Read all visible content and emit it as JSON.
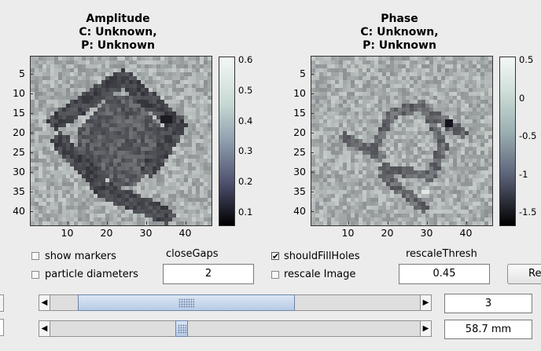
{
  "amplitude_plot": {
    "title_lines": [
      "Amplitude",
      "C: Unknown,",
      "P: Unknown"
    ],
    "y_ticks": [
      "5",
      "10",
      "15",
      "20",
      "25",
      "30",
      "35",
      "40"
    ],
    "x_ticks": [
      "10",
      "20",
      "30",
      "40"
    ],
    "colorbar_ticks": [
      "0.6",
      "0.5",
      "0.4",
      "0.3",
      "0.2",
      "0.1"
    ]
  },
  "phase_plot": {
    "title_lines": [
      "Phase",
      "C: Unknown,",
      "P: Unknown"
    ],
    "y_ticks": [
      "5",
      "10",
      "15",
      "20",
      "25",
      "30",
      "35",
      "40"
    ],
    "x_ticks": [
      "10",
      "20",
      "30",
      "40"
    ],
    "colorbar_ticks": [
      "0.5",
      "0",
      "-0.5",
      "-1",
      "-1.5"
    ]
  },
  "controls": {
    "show_markers": {
      "label": "show markers",
      "checked": false
    },
    "particle_diameters": {
      "label": "particle diameters",
      "checked": false
    },
    "close_gaps": {
      "label": "closeGaps",
      "value": "2"
    },
    "should_fill_holes": {
      "label": "shouldFillHoles",
      "checked": true
    },
    "rescale_image": {
      "label": "rescale Image",
      "checked": false
    },
    "rescale_thresh": {
      "label": "rescaleThresh",
      "value": "0.45"
    },
    "right_button_label": "Re",
    "slider1": {
      "value_text": "3",
      "fraction": 0.18
    },
    "slider2": {
      "value_text": "58.7 mm",
      "fraction": 0.35
    }
  },
  "colors": {
    "plot_light": "#d4e2dc",
    "plot_dark": "#12101a",
    "slider_thumb": "#c6d6ec",
    "panel_bg": "#ececec"
  }
}
